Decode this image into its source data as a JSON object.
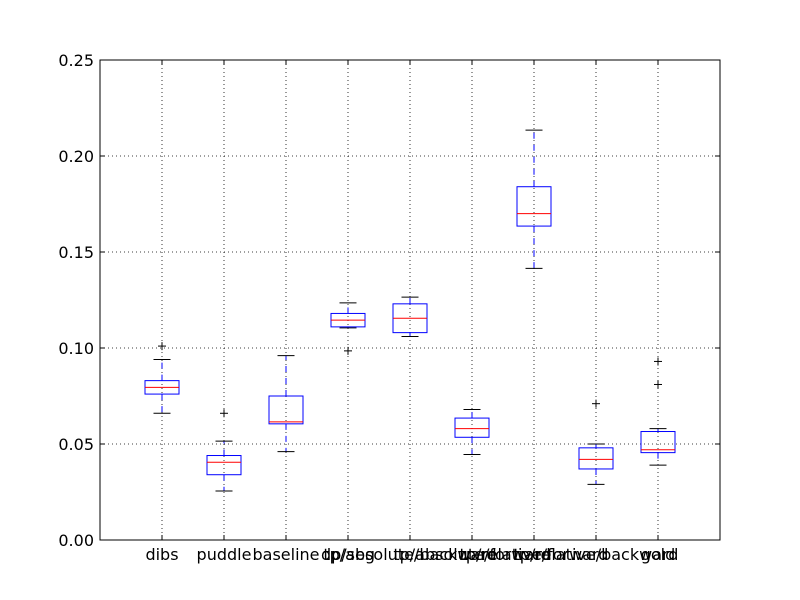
{
  "chart_data": {
    "type": "box",
    "title": "",
    "xlabel": "",
    "ylabel": "",
    "ylim": [
      0,
      0.25
    ],
    "yticks": [
      "0.00",
      "0.05",
      "0.10",
      "0.15",
      "0.20",
      "0.25"
    ],
    "grid": true,
    "colors": {
      "box": "#0000ff",
      "median": "#ff0000",
      "whisker": "#0000ff",
      "cap": "#000000",
      "flier": "#000000",
      "grid": "#000000"
    },
    "categories": [
      "dibs",
      "puddle",
      "baseline",
      "dp/seg",
      "tp/absolute/backward",
      "tp/absolute/forward",
      "tp/relative/forward",
      "tp/relative/backward",
      "gold"
    ],
    "boxes": [
      {
        "whislo": 0.066,
        "q1": 0.076,
        "med": 0.0795,
        "q3": 0.083,
        "whishi": 0.094,
        "fliers": [
          0.101
        ]
      },
      {
        "whislo": 0.0255,
        "q1": 0.034,
        "med": 0.0405,
        "q3": 0.044,
        "whishi": 0.0515,
        "fliers": [
          0.066
        ]
      },
      {
        "whislo": 0.046,
        "q1": 0.0605,
        "med": 0.0615,
        "q3": 0.075,
        "whishi": 0.096,
        "fliers": []
      },
      {
        "whislo": 0.1105,
        "q1": 0.111,
        "med": 0.1145,
        "q3": 0.118,
        "whishi": 0.1235,
        "fliers": [
          0.0985
        ]
      },
      {
        "whislo": 0.106,
        "q1": 0.108,
        "med": 0.1155,
        "q3": 0.123,
        "whishi": 0.1265,
        "fliers": []
      },
      {
        "whislo": 0.0445,
        "q1": 0.0535,
        "med": 0.058,
        "q3": 0.0635,
        "whishi": 0.068,
        "fliers": []
      },
      {
        "whislo": 0.1415,
        "q1": 0.1635,
        "med": 0.17,
        "q3": 0.184,
        "whishi": 0.2135,
        "fliers": []
      },
      {
        "whislo": 0.029,
        "q1": 0.037,
        "med": 0.042,
        "q3": 0.048,
        "whishi": 0.05,
        "fliers": [
          0.071
        ]
      },
      {
        "whislo": 0.039,
        "q1": 0.0455,
        "med": 0.047,
        "q3": 0.0565,
        "whishi": 0.058,
        "fliers": [
          0.081,
          0.093
        ]
      }
    ]
  }
}
